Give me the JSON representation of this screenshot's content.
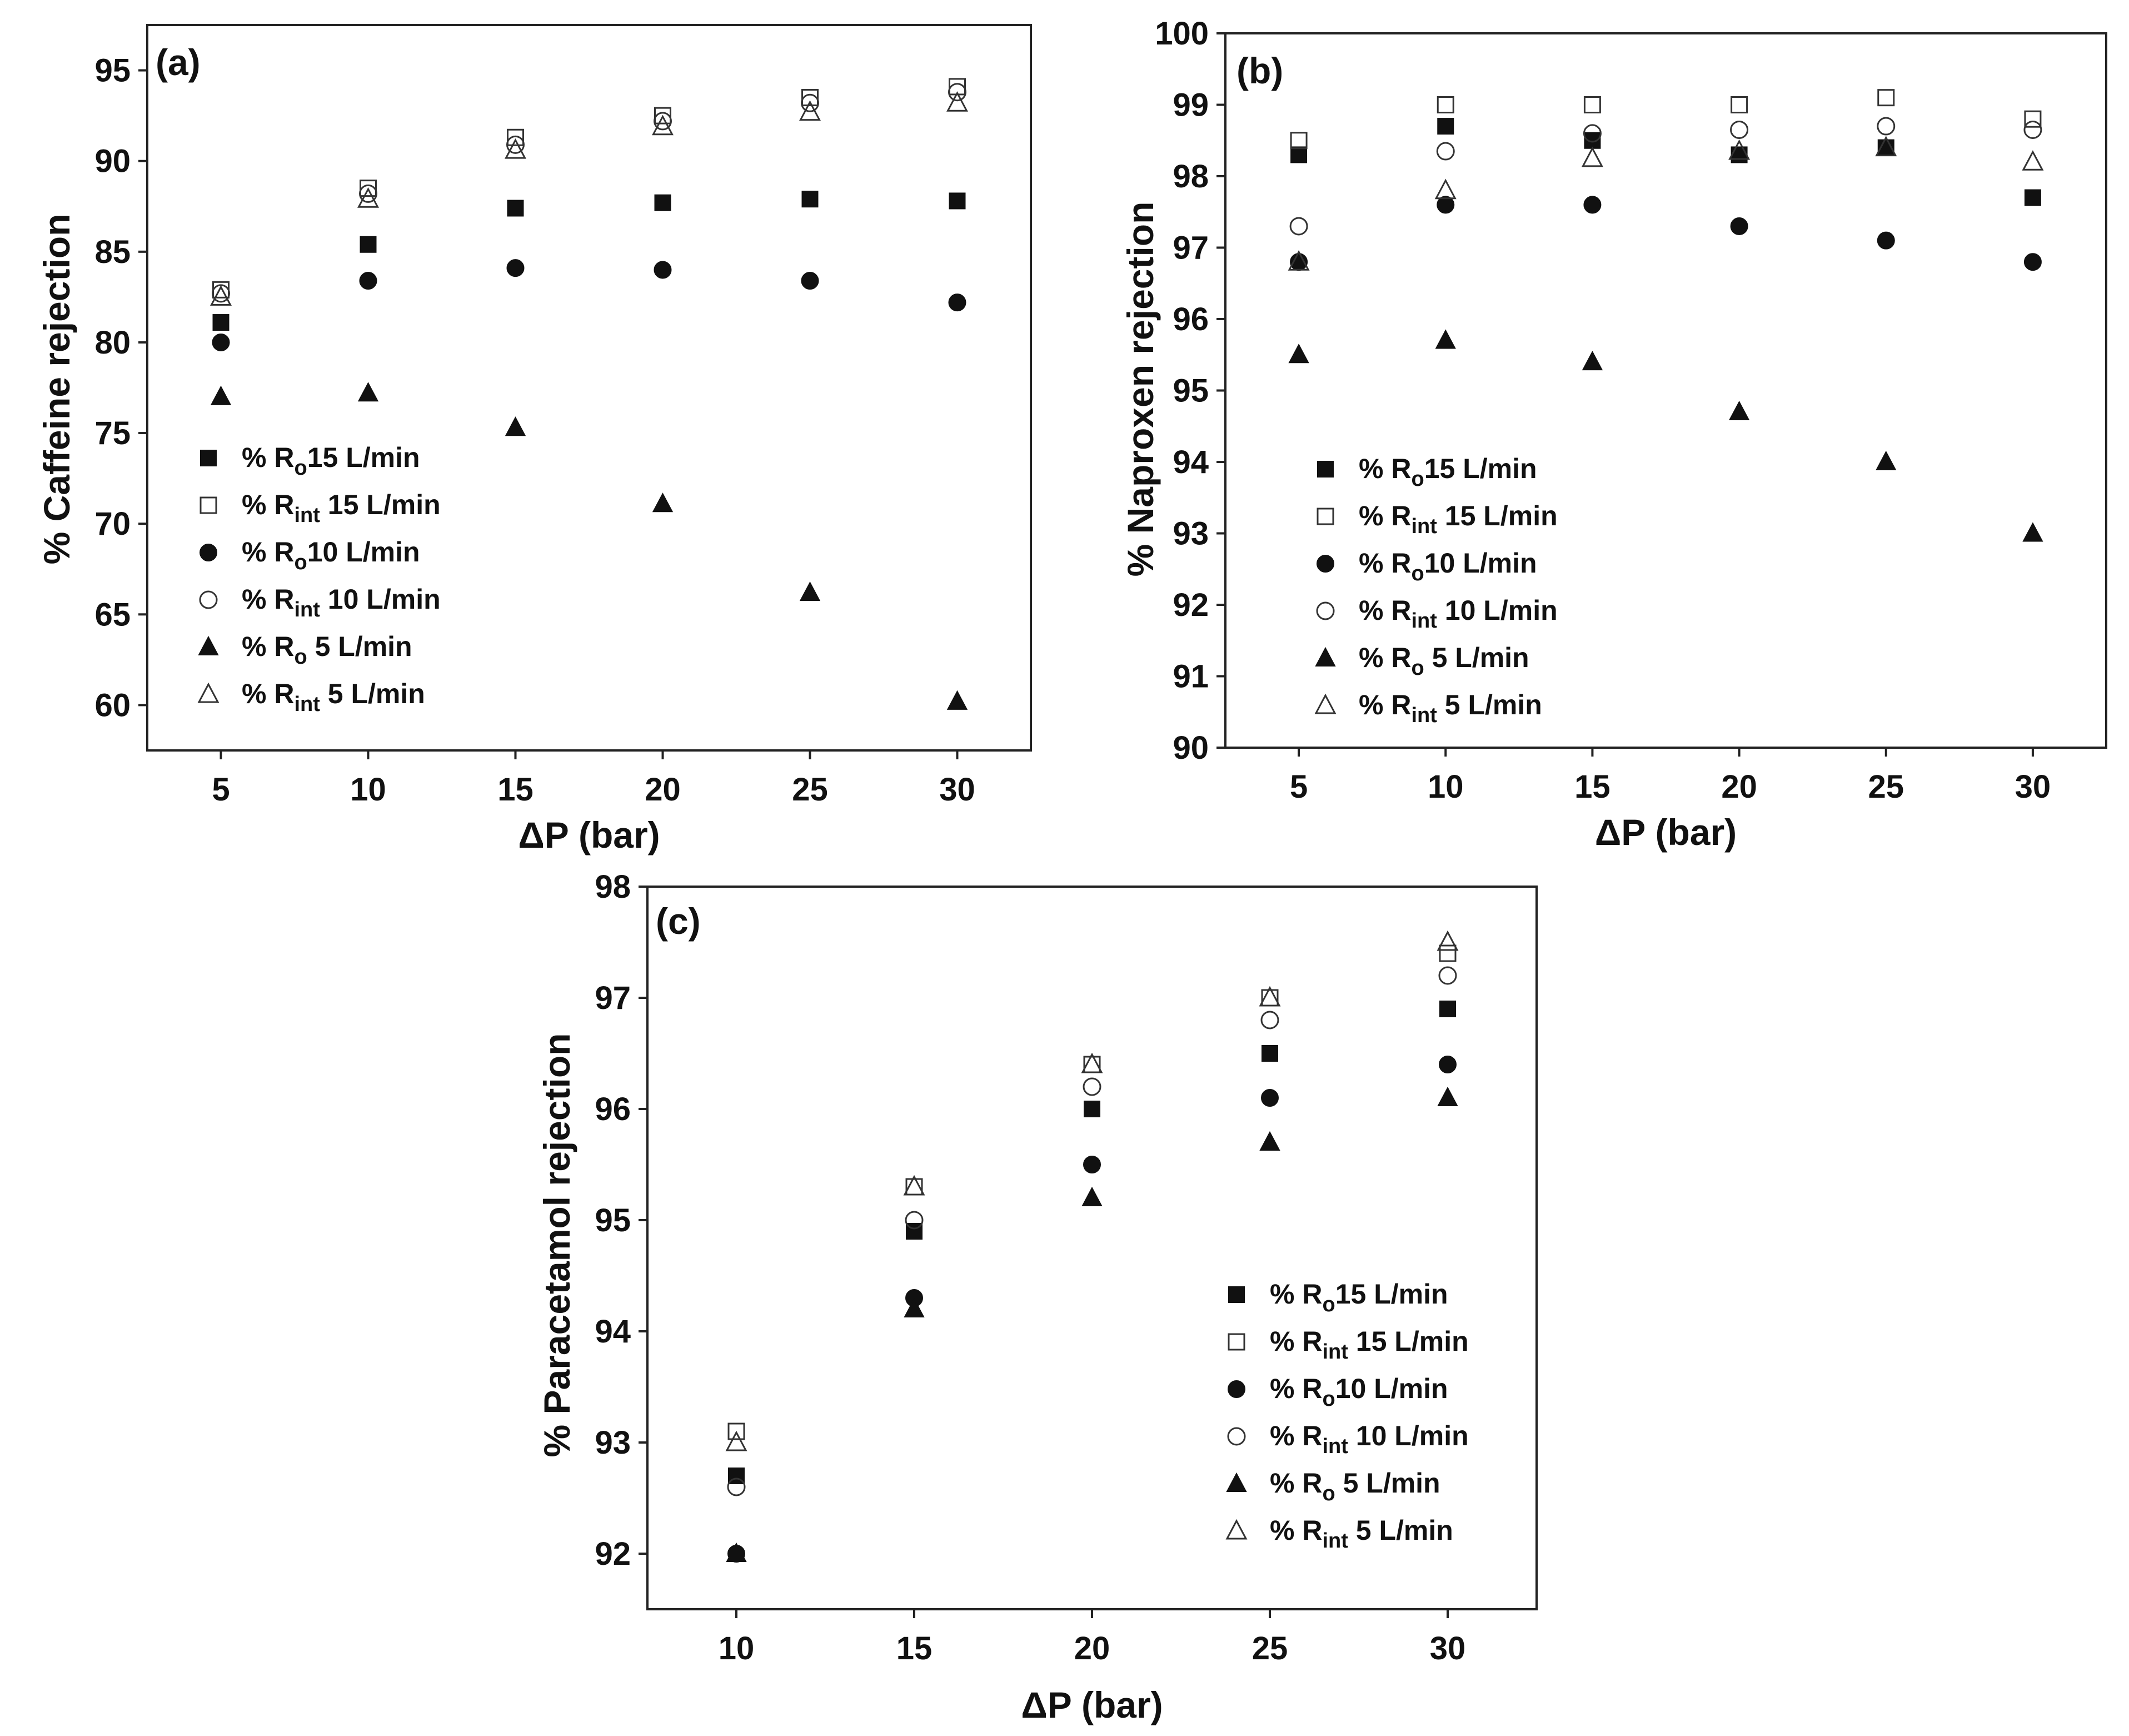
{
  "chart_data": [
    {
      "id": "a",
      "type": "scatter",
      "panel_label": "(a)",
      "xlabel": "ΔP (bar)",
      "ylabel": "% Caffeine rejection",
      "xlim": [
        2.5,
        32.5
      ],
      "ylim": [
        57.5,
        97.5
      ],
      "xticks": [
        5,
        10,
        15,
        20,
        25,
        30
      ],
      "yticks": [
        60,
        65,
        70,
        75,
        80,
        85,
        90,
        95
      ],
      "legend_position": "lower-left",
      "x": [
        5,
        10,
        15,
        20,
        25,
        30
      ],
      "series": [
        {
          "name": "% R_o 15 L/min",
          "prefix": "% R",
          "sub": "o",
          "suffix": "15 L/min",
          "marker": "square-filled",
          "values": [
            81.1,
            85.4,
            87.4,
            87.7,
            87.9,
            87.8
          ]
        },
        {
          "name": "% R_int 15 L/min",
          "prefix": "% R",
          "sub": "int",
          "suffix": " 15 L/min",
          "marker": "square-open",
          "values": [
            82.9,
            88.5,
            91.3,
            92.5,
            93.5,
            94.1
          ]
        },
        {
          "name": "% R_o 10 L/min",
          "prefix": "% R",
          "sub": "o",
          "suffix": "10 L/min",
          "marker": "circle-filled",
          "values": [
            80.0,
            83.4,
            84.1,
            84.0,
            83.4,
            82.2
          ]
        },
        {
          "name": "% R_int 10 L/min",
          "prefix": "% R",
          "sub": "int",
          "suffix": " 10 L/min",
          "marker": "circle-open",
          "values": [
            82.7,
            88.2,
            90.9,
            92.2,
            93.2,
            93.8
          ]
        },
        {
          "name": "% R_o 5 L/min",
          "prefix": "% R",
          "sub": "o",
          "suffix": " 5 L/min",
          "marker": "triangle-filled",
          "values": [
            77.0,
            77.2,
            75.3,
            71.1,
            66.2,
            60.2
          ]
        },
        {
          "name": "% R_int 5 L/min",
          "prefix": "% R",
          "sub": "int",
          "suffix": " 5 L/min",
          "marker": "triangle-open",
          "values": [
            82.5,
            87.9,
            90.6,
            91.9,
            92.7,
            93.2
          ]
        }
      ]
    },
    {
      "id": "b",
      "type": "scatter",
      "panel_label": "(b)",
      "xlabel": "ΔP (bar)",
      "ylabel": "% Naproxen rejection",
      "xlim": [
        2.5,
        32.5
      ],
      "ylim": [
        90,
        100
      ],
      "xticks": [
        5,
        10,
        15,
        20,
        25,
        30
      ],
      "yticks": [
        90,
        91,
        92,
        93,
        94,
        95,
        96,
        97,
        98,
        99,
        100
      ],
      "legend_position": "lower-left",
      "x": [
        5,
        10,
        15,
        20,
        25,
        30
      ],
      "series": [
        {
          "name": "% R_o 15 L/min",
          "prefix": "% R",
          "sub": "o",
          "suffix": "15 L/min",
          "marker": "square-filled",
          "values": [
            98.3,
            98.7,
            98.5,
            98.3,
            98.4,
            97.7
          ]
        },
        {
          "name": "% R_int 15 L/min",
          "prefix": "% R",
          "sub": "int",
          "suffix": " 15 L/min",
          "marker": "square-open",
          "values": [
            98.5,
            99.0,
            99.0,
            99.0,
            99.1,
            98.8
          ]
        },
        {
          "name": "% R_o 10 L/min",
          "prefix": "% R",
          "sub": "o",
          "suffix": "10 L/min",
          "marker": "circle-filled",
          "values": [
            96.8,
            97.6,
            97.6,
            97.3,
            97.1,
            96.8
          ]
        },
        {
          "name": "% R_int 10 L/min",
          "prefix": "% R",
          "sub": "int",
          "suffix": " 10 L/min",
          "marker": "circle-open",
          "values": [
            97.3,
            98.35,
            98.6,
            98.65,
            98.7,
            98.65
          ]
        },
        {
          "name": "% R_o 5 L/min",
          "prefix": "% R",
          "sub": "o",
          "suffix": " 5 L/min",
          "marker": "triangle-filled",
          "values": [
            95.5,
            95.7,
            95.4,
            94.7,
            94.0,
            93.0
          ]
        },
        {
          "name": "% R_int 5 L/min",
          "prefix": "% R",
          "sub": "int",
          "suffix": " 5 L/min",
          "marker": "triangle-open",
          "values": [
            96.8,
            97.8,
            98.25,
            98.35,
            98.4,
            98.2
          ]
        }
      ]
    },
    {
      "id": "c",
      "type": "scatter",
      "panel_label": "(c)",
      "xlabel": "ΔP (bar)",
      "ylabel": "% Paracetamol rejection",
      "xlim": [
        7.5,
        32.5
      ],
      "ylim": [
        91.5,
        98
      ],
      "xticks": [
        10,
        15,
        20,
        25,
        30
      ],
      "yticks": [
        92,
        93,
        94,
        95,
        96,
        97,
        98
      ],
      "legend_position": "lower-right",
      "x": [
        10,
        15,
        20,
        25,
        30
      ],
      "series": [
        {
          "name": "% R_o 15 L/min",
          "prefix": "% R",
          "sub": "o",
          "suffix": "15 L/min",
          "marker": "square-filled",
          "values": [
            92.7,
            94.9,
            96.0,
            96.5,
            96.9
          ]
        },
        {
          "name": "% R_int 15 L/min",
          "prefix": "% R",
          "sub": "int",
          "suffix": " 15 L/min",
          "marker": "square-open",
          "values": [
            93.1,
            95.3,
            96.4,
            97.0,
            97.4
          ]
        },
        {
          "name": "% R_o 10 L/min",
          "prefix": "% R",
          "sub": "o",
          "suffix": "10 L/min",
          "marker": "circle-filled",
          "values": [
            92.0,
            94.3,
            95.5,
            96.1,
            96.4
          ]
        },
        {
          "name": "% R_int 10 L/min",
          "prefix": "% R",
          "sub": "int",
          "suffix": " 10 L/min",
          "marker": "circle-open",
          "values": [
            92.6,
            95.0,
            96.2,
            96.8,
            97.2
          ]
        },
        {
          "name": "% R_o 5 L/min",
          "prefix": "% R",
          "sub": "o",
          "suffix": " 5 L/min",
          "marker": "triangle-filled",
          "values": [
            92.0,
            94.2,
            95.2,
            95.7,
            96.1
          ]
        },
        {
          "name": "% R_int 5 L/min",
          "prefix": "% R",
          "sub": "int",
          "suffix": " 5 L/min",
          "marker": "triangle-open",
          "values": [
            93.0,
            95.3,
            96.4,
            97.0,
            97.5
          ]
        }
      ]
    }
  ]
}
